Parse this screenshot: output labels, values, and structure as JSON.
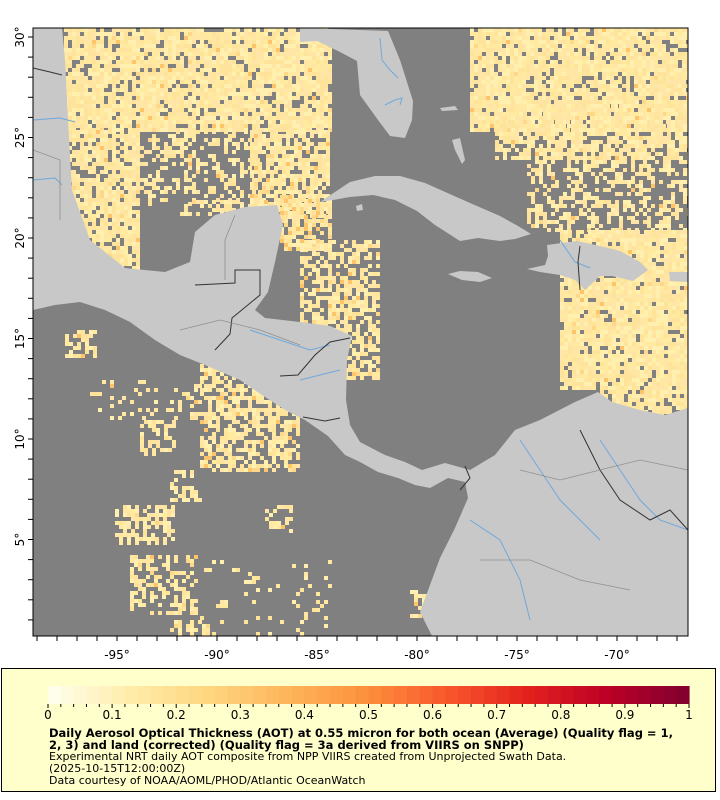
{
  "map": {
    "lat_ticks": [
      "30°",
      "25°",
      "20°",
      "15°",
      "10°",
      "5°"
    ],
    "lat_values": [
      30,
      25,
      20,
      15,
      10,
      5
    ],
    "lon_ticks": [
      "-95°",
      "-90°",
      "-85°",
      "-80°",
      "-75°",
      "-70°"
    ],
    "lon_values": [
      -95,
      -90,
      -85,
      -80,
      -75,
      -70
    ],
    "colors": {
      "no_data_ocean": "#808080",
      "land": "#c8c8c8",
      "rivers": "#6fa8dc",
      "borders": "#333333",
      "aot_low": "#ffeaa0",
      "aot_mid": "#fec46a"
    }
  },
  "legend": {
    "tick_labels": [
      "0",
      "0.1",
      "0.2",
      "0.3",
      "0.4",
      "0.5",
      "0.6",
      "0.7",
      "0.8",
      "0.9",
      "1"
    ],
    "range": [
      0,
      1
    ],
    "colormap": [
      "#fffff0",
      "#ffedaa",
      "#fed680",
      "#feb55a",
      "#fd8f3c",
      "#f8562c",
      "#e2211d",
      "#bb0026",
      "#800030"
    ],
    "title_line1": "Daily Aerosol Optical Thickness (AOT) at 0.55 micron for both ocean (Average) (Quality flag = 1,",
    "title_line2": "2, 3) and land (corrected) (Quality flag = 3a derived from VIIRS on SNPP)",
    "line3": "Experimental NRT daily AOT composite from NPP VIIRS created from Unprojected Swath Data.",
    "line4": "(2025-10-15T12:00:00Z)",
    "line5": "Data courtesy of NOAA/AOML/PHOD/Atlantic OceanWatch"
  }
}
